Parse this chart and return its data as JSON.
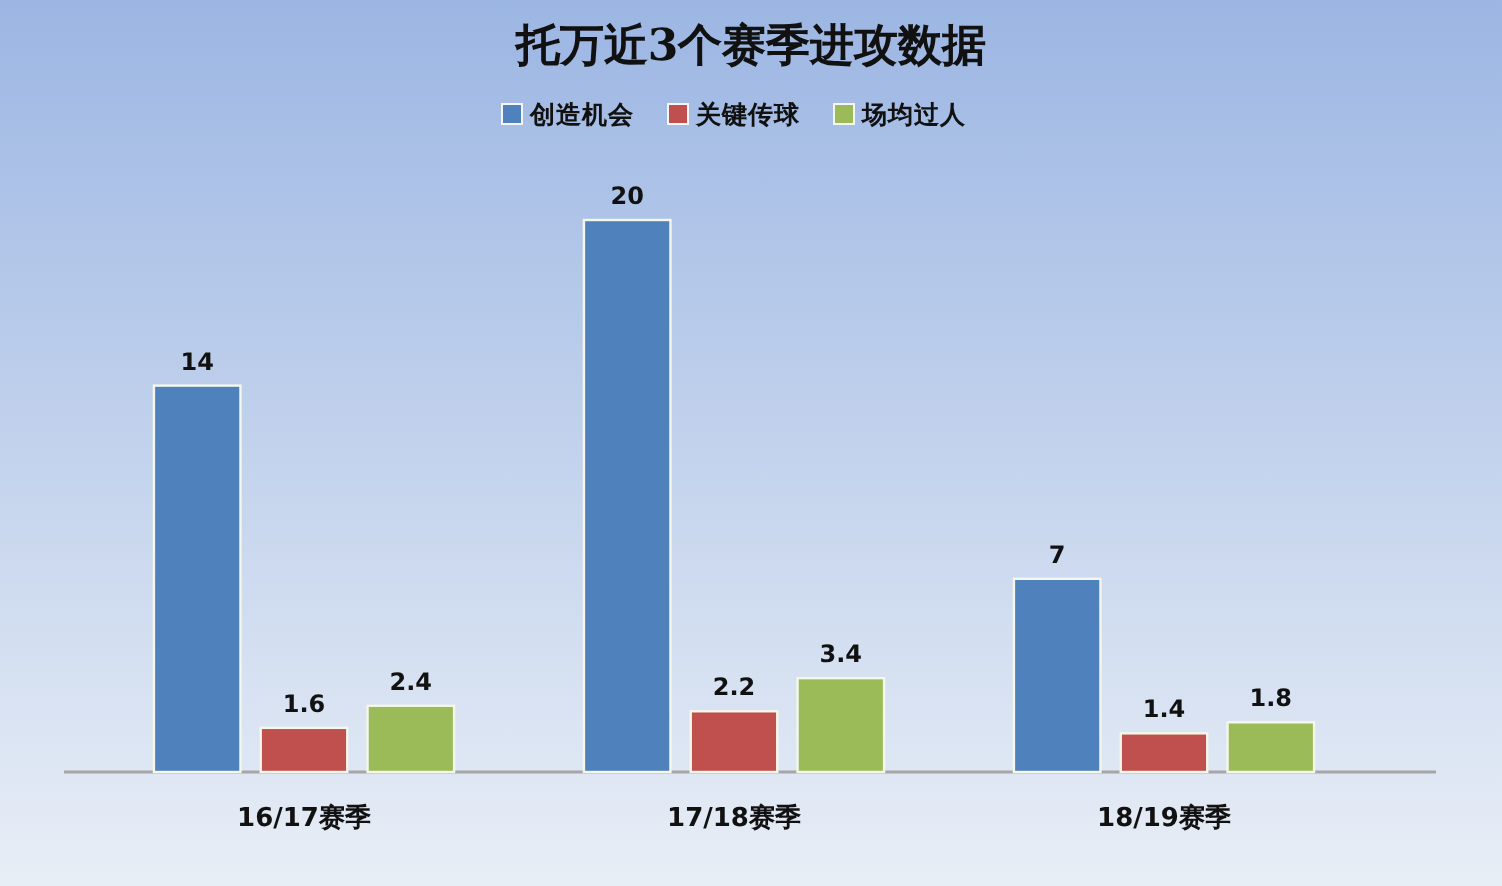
{
  "chart_data": {
    "type": "bar",
    "title": "托万近3个赛季进攻数据",
    "categories": [
      "16/17赛季",
      "17/18赛季",
      "18/19赛季"
    ],
    "series": [
      {
        "name": "创造机会",
        "color": "#4f81bd",
        "values": [
          14,
          20,
          7
        ]
      },
      {
        "name": "关键传球",
        "color": "#c0504d",
        "values": [
          1.6,
          2.2,
          1.4
        ]
      },
      {
        "name": "场均过人",
        "color": "#9bbb59",
        "values": [
          2.4,
          3.4,
          1.8
        ]
      }
    ],
    "data_labels": true,
    "legend": "top"
  }
}
